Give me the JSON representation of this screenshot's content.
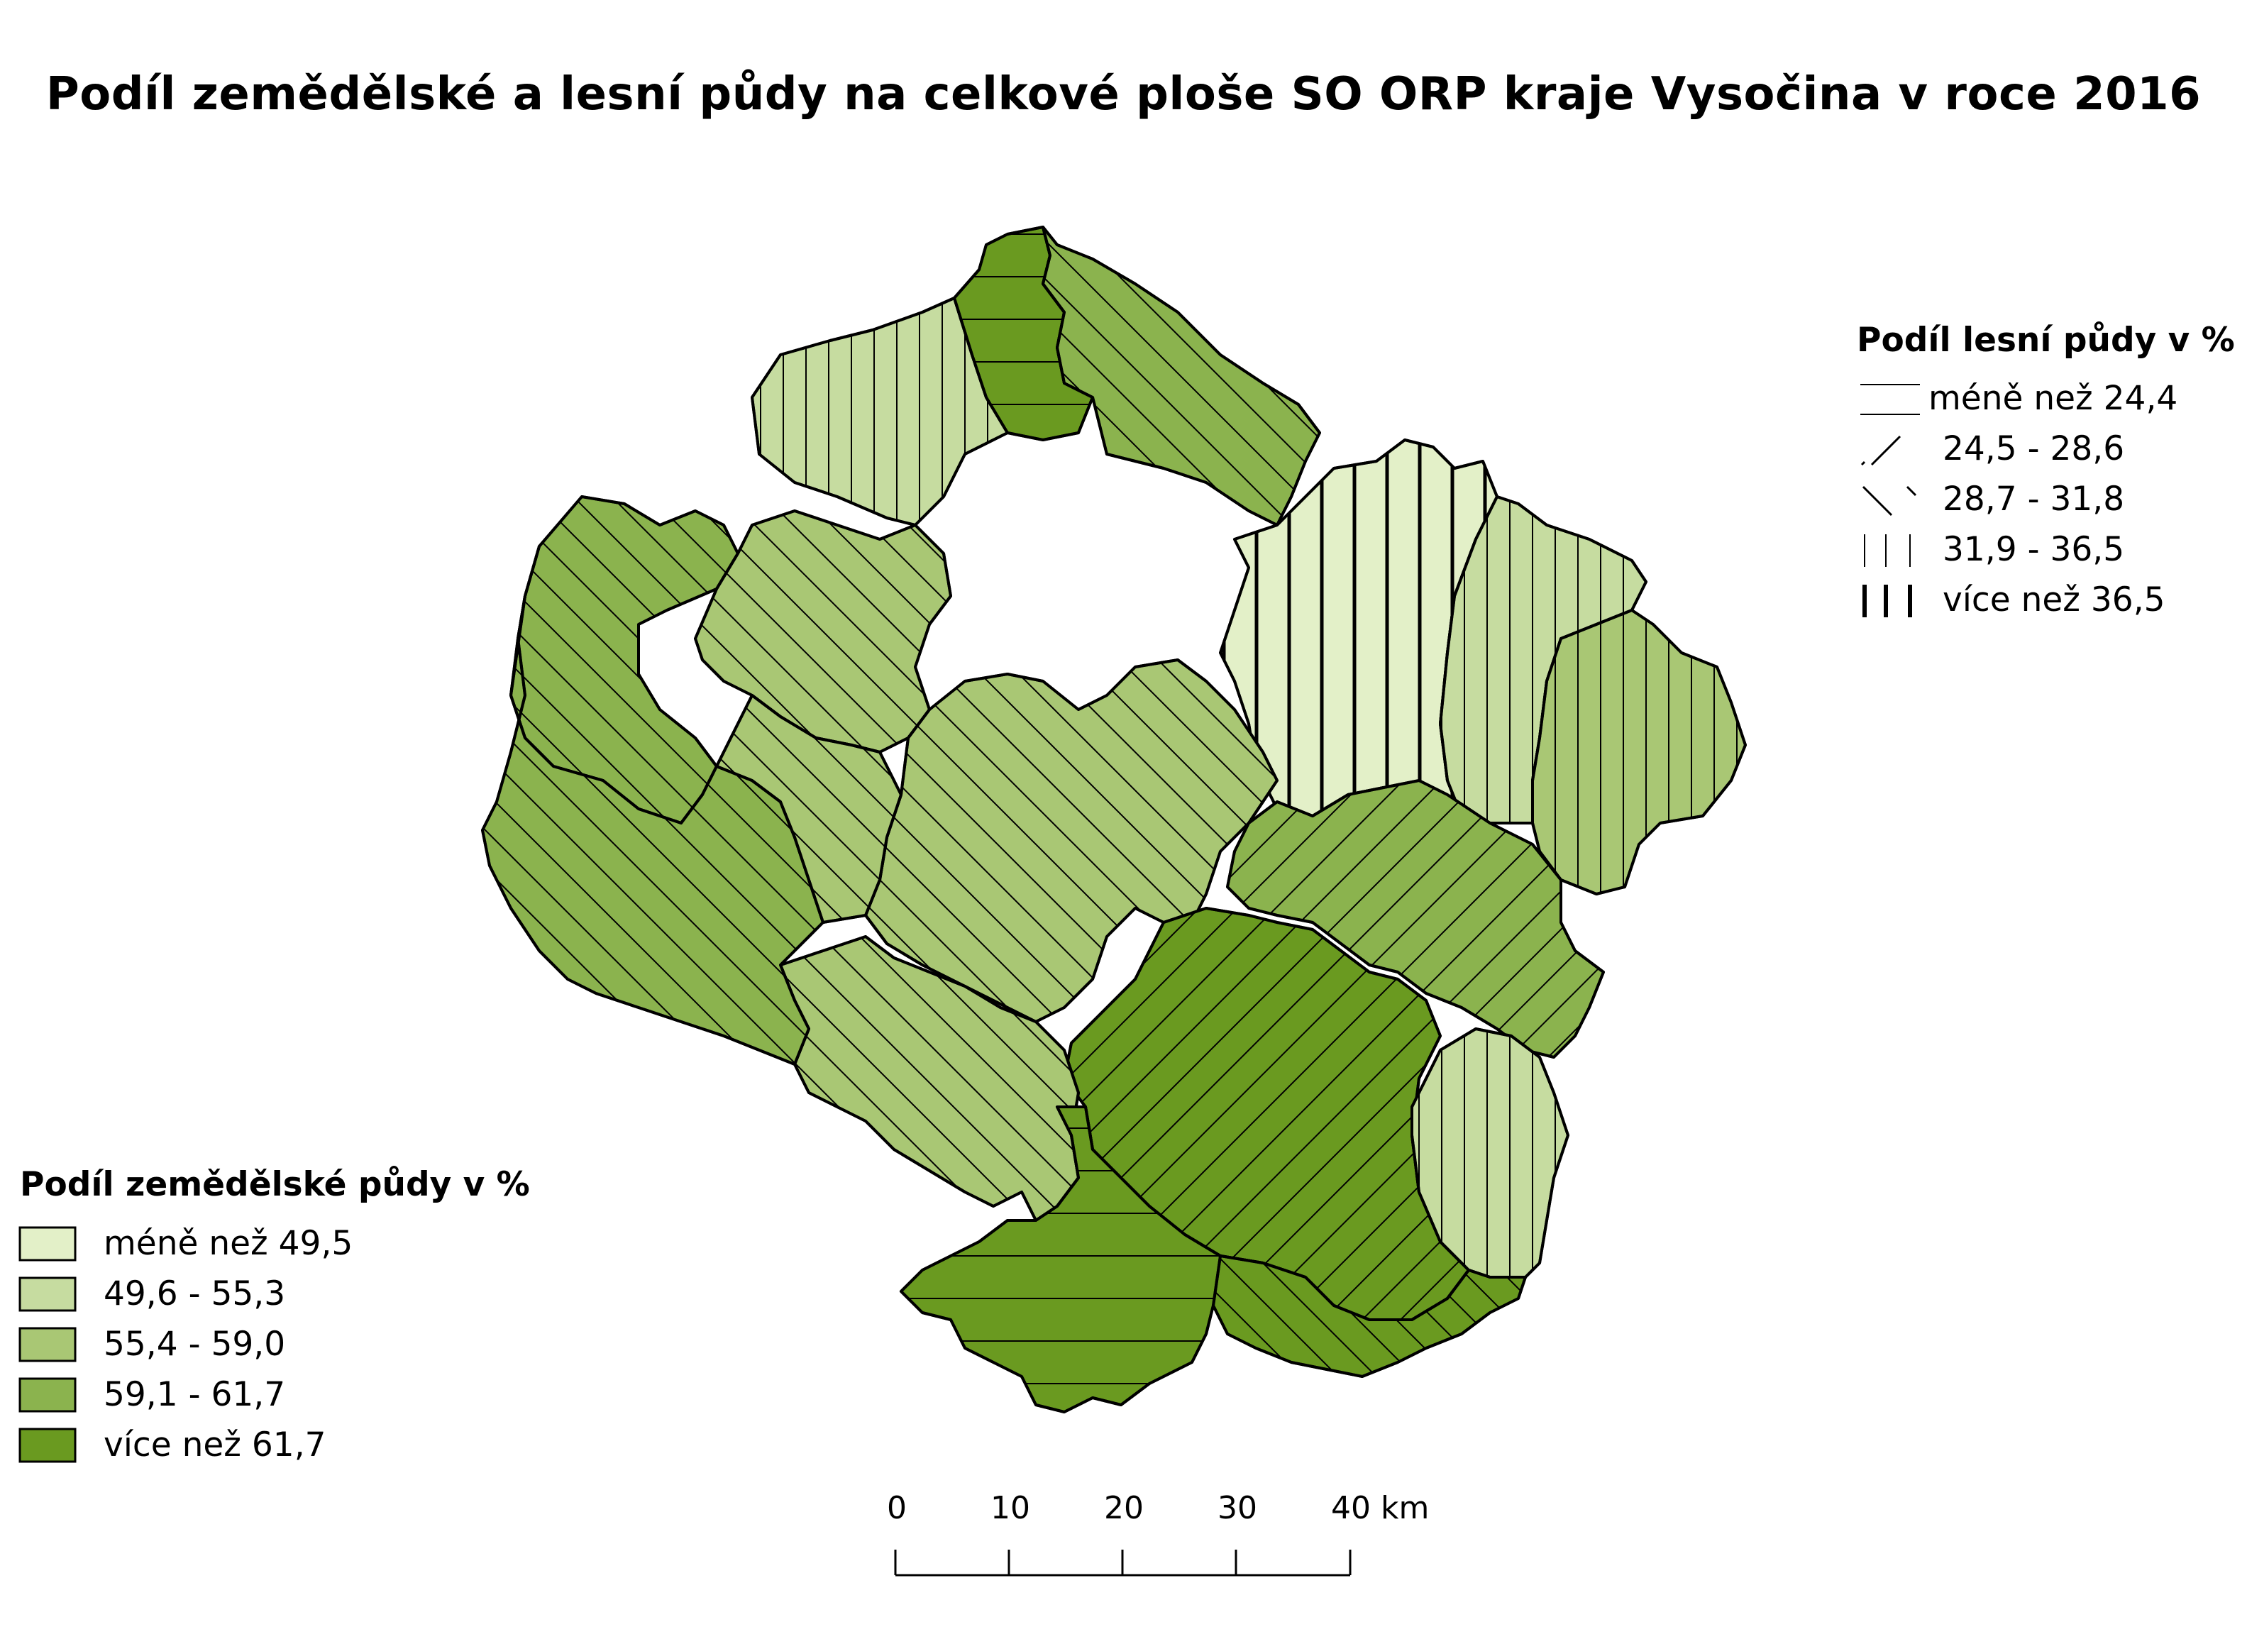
{
  "title": "Podíl zemědělské a lesní půdy na celkové ploše SO ORP kraje Vysočina v roce 2016",
  "colors": {
    "c1": "#e3f0c8",
    "c2": "#c6dca0",
    "c3": "#a9c774",
    "c4": "#8bb34e",
    "c5": "#6a9a20",
    "outline": "#000000"
  },
  "legend_agri": {
    "title": "Podíl zemědělské půdy v %",
    "items": [
      {
        "label": "méně než 49,5",
        "color": "#e3f0c8"
      },
      {
        "label": "49,6 - 55,3",
        "color": "#c6dca0"
      },
      {
        "label": "55,4 - 59,0",
        "color": "#a9c774"
      },
      {
        "label": "59,1 - 61,7",
        "color": "#8bb34e"
      },
      {
        "label": "více než 61,7",
        "color": "#6a9a20"
      }
    ]
  },
  "legend_forest": {
    "title": "Podíl lesní půdy v %",
    "items": [
      {
        "label": "méně než 24,4",
        "pattern": "horizontal"
      },
      {
        "label": "24,5 - 28,6",
        "pattern": "diagonal-up"
      },
      {
        "label": "28,7 - 31,8",
        "pattern": "diagonal-down"
      },
      {
        "label": "31,9 - 36,5",
        "pattern": "vertical-thin"
      },
      {
        "label": "více než 36,5",
        "pattern": "vertical-thick"
      }
    ]
  },
  "scale_bar": {
    "ticks": [
      "0",
      "10",
      "20",
      "30",
      "40 km"
    ]
  },
  "districts": [
    {
      "agri_class": 2,
      "forest_class": 4,
      "color": "#c6dca0",
      "pattern": "vertical-thin"
    },
    {
      "agri_class": 5,
      "forest_class": 1,
      "color": "#6a9a20",
      "pattern": "horizontal"
    },
    {
      "agri_class": 4,
      "forest_class": 3,
      "color": "#8bb34e",
      "pattern": "diagonal-down"
    },
    {
      "agri_class": 1,
      "forest_class": 5,
      "color": "#e3f0c8",
      "pattern": "vertical-thick"
    },
    {
      "agri_class": 2,
      "forest_class": 4,
      "color": "#c6dca0",
      "pattern": "vertical-thin"
    },
    {
      "agri_class": 3,
      "forest_class": 4,
      "color": "#a9c774",
      "pattern": "vertical-thin"
    },
    {
      "agri_class": 4,
      "forest_class": 3,
      "color": "#8bb34e",
      "pattern": "diagonal-down"
    },
    {
      "agri_class": 3,
      "forest_class": 3,
      "color": "#a9c774",
      "pattern": "diagonal-down"
    },
    {
      "agri_class": 3,
      "forest_class": 3,
      "color": "#a9c774",
      "pattern": "diagonal-down"
    },
    {
      "agri_class": 4,
      "forest_class": 2,
      "color": "#8bb34e",
      "pattern": "diagonal-up"
    },
    {
      "agri_class": 5,
      "forest_class": 2,
      "color": "#6a9a20",
      "pattern": "diagonal-up"
    },
    {
      "agri_class": 2,
      "forest_class": 4,
      "color": "#c6dca0",
      "pattern": "vertical-thin"
    },
    {
      "agri_class": 3,
      "forest_class": 3,
      "color": "#a9c774",
      "pattern": "diagonal-down"
    },
    {
      "agri_class": 5,
      "forest_class": 1,
      "color": "#6a9a20",
      "pattern": "horizontal"
    },
    {
      "agri_class": 5,
      "forest_class": 3,
      "color": "#6a9a20",
      "pattern": "diagonal-down"
    }
  ]
}
